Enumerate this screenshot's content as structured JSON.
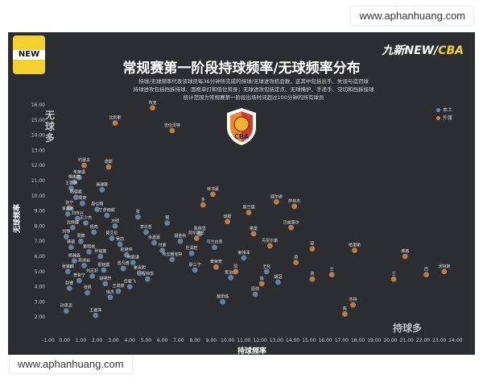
{
  "watermark": {
    "text": "www.aphanhuang.com"
  },
  "brand": {
    "logo_number": "9",
    "logo_text": "NEW",
    "right_prefix": "九新",
    "right_new": "NEW/",
    "right_cba": "CBA"
  },
  "header": {
    "title": "常规赛第一阶段持球频率/无球频率分布",
    "subtitle_lines": [
      "持球/无球频率代表该球员每36分钟所完成的持球/无球进攻机会数，这其中包括出手、失误与造罚球",
      "持球进攻包括挡拆持球、面框单打和低位背身；无球进攻包括定点、无球掩护、手递手、空切和挡拆接球",
      "统计范围为常规赛第一阶段出场时间超过100分钟的所有球员"
    ]
  },
  "cba_logo_text": "CBA",
  "axis_hints": {
    "y": "无球多",
    "x": "持球多"
  },
  "chart_data": {
    "type": "scatter",
    "title": "常规赛第一阶段持球频率/无球频率分布",
    "xlabel": "持球频率",
    "ylabel": "无球频率",
    "xlim": [
      -1,
      24
    ],
    "ylim": [
      1,
      16
    ],
    "x_ticks": [
      "-1.00",
      "0.00",
      "1.00",
      "2.00",
      "3.00",
      "4.00",
      "5.00",
      "6.00",
      "7.00",
      "8.00",
      "9.00",
      "10.00",
      "11.00",
      "12.00",
      "13.00",
      "14.00",
      "15.00",
      "16.00",
      "17.00",
      "18.00",
      "19.00",
      "20.00",
      "21.00",
      "22.00",
      "23.00",
      "24.00"
    ],
    "y_ticks": [
      "2.00",
      "3.00",
      "4.00",
      "5.00",
      "6.00",
      "7.00",
      "8.00",
      "9.00",
      "10.00",
      "11.00",
      "12.00",
      "13.00",
      "14.00",
      "15.00",
      "16.00"
    ],
    "colors": {
      "local": "#6f8aa8",
      "foreign": "#c8874a"
    },
    "series": [
      {
        "name": "本土",
        "color": "#6f8aa8",
        "points": [
          {
            "x": 0.9,
            "y": 11.2,
            "label": "朱荣振"
          },
          {
            "x": 0.6,
            "y": 10.9,
            "label": "邹雨宸"
          },
          {
            "x": 0.4,
            "y": 10.5,
            "label": "王哲林"
          },
          {
            "x": 0.7,
            "y": 9.9,
            "label": "韩德君"
          },
          {
            "x": 1.1,
            "y": 9.5,
            "label": "周琦"
          },
          {
            "x": 0.3,
            "y": 9.2,
            "label": "张宁"
          },
          {
            "x": 0.2,
            "y": 8.8,
            "label": "李慕豪"
          },
          {
            "x": 0.8,
            "y": 8.5,
            "label": "刘传兴"
          },
          {
            "x": 1.3,
            "y": 8.2,
            "label": "王少杰"
          },
          {
            "x": 0.5,
            "y": 7.9,
            "label": "沈梓捷"
          },
          {
            "x": 1.8,
            "y": 7.6,
            "label": "杨鸣"
          },
          {
            "x": 0.1,
            "y": 7.3,
            "label": "刘铮"
          },
          {
            "x": 1.0,
            "y": 7.0,
            "label": "周鹏"
          },
          {
            "x": 0.4,
            "y": 6.6,
            "label": "韩硕"
          },
          {
            "x": 1.5,
            "y": 6.3,
            "label": "黄明依"
          },
          {
            "x": 2.2,
            "y": 6.0,
            "label": "孙铭徽"
          },
          {
            "x": 0.6,
            "y": 5.7,
            "label": "杨瀚森"
          },
          {
            "x": 1.2,
            "y": 5.4,
            "label": "高诗岩"
          },
          {
            "x": 0.2,
            "y": 5.0,
            "label": "张镇麟"
          },
          {
            "x": 1.7,
            "y": 4.7,
            "label": "刘志轩"
          },
          {
            "x": 0.9,
            "y": 4.4,
            "label": "贺希宁"
          },
          {
            "x": 2.5,
            "y": 4.2,
            "label": "胡明轩"
          },
          {
            "x": 0.3,
            "y": 3.9,
            "label": "赵睿"
          },
          {
            "x": 1.4,
            "y": 3.6,
            "label": "张帆"
          },
          {
            "x": 2.8,
            "y": 3.3,
            "label": "徐杰"
          },
          {
            "x": 0.1,
            "y": 2.4,
            "label": "孙思尧"
          },
          {
            "x": 1.9,
            "y": 2.1,
            "label": "王睿泽"
          },
          {
            "x": 2.3,
            "y": 10.4,
            "label": "易建联"
          },
          {
            "x": 2.0,
            "y": 9.1,
            "label": "周仪翔"
          },
          {
            "x": 2.6,
            "y": 8.7,
            "label": "丁彦雨航"
          },
          {
            "x": 3.1,
            "y": 8.0,
            "label": "方硕"
          },
          {
            "x": 2.9,
            "y": 7.2,
            "label": "郭艾伦"
          },
          {
            "x": 3.4,
            "y": 6.8,
            "label": "吴前"
          },
          {
            "x": 3.8,
            "y": 6.1,
            "label": "赵继伟"
          },
          {
            "x": 4.2,
            "y": 5.6,
            "label": "林庭谦"
          },
          {
            "x": 3.6,
            "y": 5.2,
            "label": "曾凡博"
          },
          {
            "x": 4.6,
            "y": 4.9,
            "label": "崔永熙"
          },
          {
            "x": 5.1,
            "y": 4.5,
            "label": "程帅澎"
          },
          {
            "x": 4.0,
            "y": 4.0,
            "label": "任骏飞"
          },
          {
            "x": 3.3,
            "y": 3.7,
            "label": "王岚嵚"
          },
          {
            "x": 5.5,
            "y": 6.9,
            "label": "余嘉豪"
          },
          {
            "x": 6.0,
            "y": 6.4,
            "label": "付豪"
          },
          {
            "x": 6.6,
            "y": 5.8,
            "label": "布云朝克特"
          },
          {
            "x": 7.1,
            "y": 7.0,
            "label": "胡金秋"
          },
          {
            "x": 7.8,
            "y": 6.2,
            "label": "杜润旺"
          },
          {
            "x": 8.3,
            "y": 7.5,
            "label": "陈林坚"
          },
          {
            "x": 8.0,
            "y": 5.1,
            "label": "廖三宁"
          },
          {
            "x": 9.2,
            "y": 6.6,
            "label": "可兰白克"
          },
          {
            "x": 10.2,
            "y": 4.6,
            "label": "焦泊乔"
          },
          {
            "x": 11.0,
            "y": 5.9,
            "label": "姜伟泽"
          },
          {
            "x": 12.4,
            "y": 5.0,
            "label": "王化"
          },
          {
            "x": 11.7,
            "y": 3.5,
            "label": "原帅"
          },
          {
            "x": 9.7,
            "y": 3.0,
            "label": "黎伊扬"
          },
          {
            "x": 13.1,
            "y": 4.3,
            "label": "胡冠"
          },
          {
            "x": 6.3,
            "y": 8.2,
            "label": "程"
          },
          {
            "x": 5.0,
            "y": 7.6,
            "label": "李炎哲"
          },
          {
            "x": 4.5,
            "y": 8.6,
            "label": "张"
          },
          {
            "x": 2.4,
            "y": 5.1,
            "label": "祝铭震"
          }
        ]
      },
      {
        "name": "外援",
        "color": "#c8874a",
        "points": [
          {
            "x": 5.4,
            "y": 15.8,
            "label": "布克"
          },
          {
            "x": 3.1,
            "y": 14.8,
            "label": "比利斯"
          },
          {
            "x": 6.6,
            "y": 14.3,
            "label": "吉伦沃特"
          },
          {
            "x": 1.2,
            "y": 12.0,
            "label": "约瑟夫"
          },
          {
            "x": 2.7,
            "y": 11.9,
            "label": "唐斯"
          },
          {
            "x": 9.1,
            "y": 10.1,
            "label": "林书豪"
          },
          {
            "x": 8.5,
            "y": 9.4,
            "label": "多"
          },
          {
            "x": 11.3,
            "y": 8.9,
            "label": "莫兰德"
          },
          {
            "x": 13.0,
            "y": 9.6,
            "label": "威尔逊"
          },
          {
            "x": 14.1,
            "y": 9.3,
            "label": "萨林杰"
          },
          {
            "x": 10.0,
            "y": 8.3,
            "label": "琼斯"
          },
          {
            "x": 13.9,
            "y": 7.9,
            "label": "贝兹莫尔"
          },
          {
            "x": 8.1,
            "y": 7.2,
            "label": "阿尔斯兰"
          },
          {
            "x": 11.6,
            "y": 7.5,
            "label": "格雷"
          },
          {
            "x": 15.2,
            "y": 6.5,
            "label": "琼"
          },
          {
            "x": 17.8,
            "y": 6.4,
            "label": "哈里斯"
          },
          {
            "x": 20.9,
            "y": 6.0,
            "label": "弗格"
          },
          {
            "x": 12.6,
            "y": 6.7,
            "label": "丹尼尔斯"
          },
          {
            "x": 14.2,
            "y": 5.6,
            "label": "琼"
          },
          {
            "x": 9.3,
            "y": 5.3,
            "label": "黄荣奇"
          },
          {
            "x": 16.4,
            "y": 4.8,
            "label": "兰"
          },
          {
            "x": 15.2,
            "y": 4.5,
            "label": "高"
          },
          {
            "x": 17.7,
            "y": 2.8,
            "label": "杰特"
          },
          {
            "x": 17.2,
            "y": 2.2,
            "label": "陈"
          },
          {
            "x": 20.2,
            "y": 4.5,
            "label": "兰"
          },
          {
            "x": 22.2,
            "y": 4.8,
            "label": "巴"
          },
          {
            "x": 23.3,
            "y": 5.0,
            "label": "沃特斯"
          },
          {
            "x": 12.1,
            "y": 4.2,
            "label": "高"
          },
          {
            "x": 10.5,
            "y": 5.0,
            "label": "凯"
          }
        ]
      }
    ],
    "grid": false,
    "legend_position": "top-right"
  }
}
